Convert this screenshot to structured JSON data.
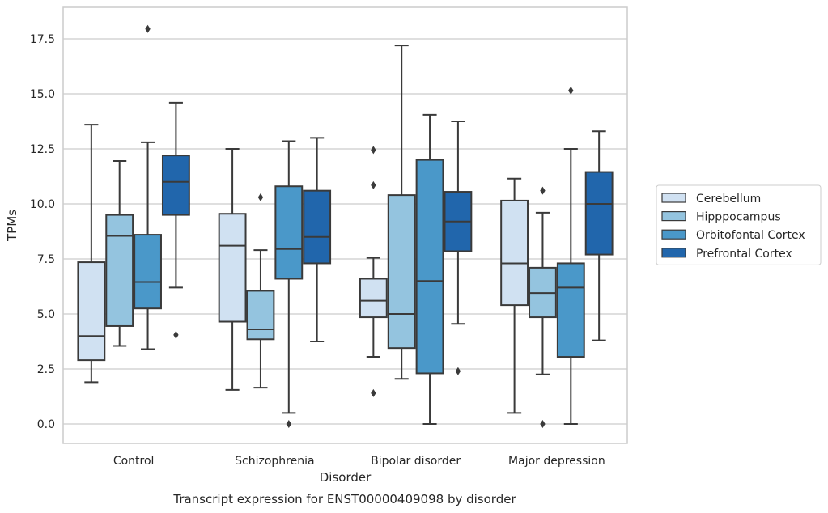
{
  "chart_data": {
    "type": "boxplot",
    "caption": "Transcript expression for ENST00000409098 by disorder",
    "xlabel": "Disorder",
    "ylabel": "TPMs",
    "ylim": [
      -0.85,
      18.8
    ],
    "yticks": [
      "0.0",
      "2.5",
      "5.0",
      "7.5",
      "10.0",
      "12.5",
      "15.0",
      "17.5"
    ],
    "categories": [
      "Control",
      "Schizophrenia",
      "Bipolar disorder",
      "Major depression"
    ],
    "grid": "horizontal",
    "legend_position": "right",
    "series": [
      {
        "name": "Cerebellum",
        "color": "#d0e1f2",
        "boxes": [
          {
            "whislo": 1.9,
            "q1": 2.9,
            "med": 4.0,
            "q3": 7.35,
            "whishi": 13.6,
            "fliers": []
          },
          {
            "whislo": 1.55,
            "q1": 4.65,
            "med": 8.1,
            "q3": 9.55,
            "whishi": 12.5,
            "fliers": []
          },
          {
            "whislo": 3.05,
            "q1": 4.85,
            "med": 5.6,
            "q3": 6.6,
            "whishi": 7.55,
            "fliers": [
              1.4,
              10.85,
              12.45
            ]
          },
          {
            "whislo": 0.5,
            "q1": 5.4,
            "med": 7.3,
            "q3": 10.15,
            "whishi": 11.15,
            "fliers": []
          }
        ]
      },
      {
        "name": "Hipppocampus",
        "color": "#94c4df",
        "boxes": [
          {
            "whislo": 3.55,
            "q1": 4.45,
            "med": 8.55,
            "q3": 9.5,
            "whishi": 11.95,
            "fliers": []
          },
          {
            "whislo": 1.65,
            "q1": 3.85,
            "med": 4.3,
            "q3": 6.05,
            "whishi": 7.9,
            "fliers": [
              10.3
            ]
          },
          {
            "whislo": 2.05,
            "q1": 3.45,
            "med": 5.0,
            "q3": 10.4,
            "whishi": 17.2,
            "fliers": []
          },
          {
            "whislo": 2.25,
            "q1": 4.85,
            "med": 5.95,
            "q3": 7.1,
            "whishi": 9.6,
            "fliers": [
              0.0,
              10.6
            ]
          }
        ]
      },
      {
        "name": "Orbitofontal Cortex",
        "color": "#4a98c9",
        "boxes": [
          {
            "whislo": 3.4,
            "q1": 5.25,
            "med": 6.45,
            "q3": 8.6,
            "whishi": 12.8,
            "fliers": [
              17.95
            ]
          },
          {
            "whislo": 0.5,
            "q1": 6.6,
            "med": 7.95,
            "q3": 10.8,
            "whishi": 12.85,
            "fliers": [
              0.0
            ]
          },
          {
            "whislo": 0.0,
            "q1": 2.3,
            "med": 6.5,
            "q3": 12.0,
            "whishi": 14.05,
            "fliers": []
          },
          {
            "whislo": 0.0,
            "q1": 3.05,
            "med": 6.2,
            "q3": 7.3,
            "whishi": 12.5,
            "fliers": [
              15.15
            ]
          }
        ]
      },
      {
        "name": "Prefrontal Cortex",
        "color": "#2166ac",
        "boxes": [
          {
            "whislo": 6.2,
            "q1": 9.5,
            "med": 11.0,
            "q3": 12.2,
            "whishi": 14.6,
            "fliers": [
              4.05
            ]
          },
          {
            "whislo": 3.75,
            "q1": 7.3,
            "med": 8.5,
            "q3": 10.6,
            "whishi": 13.0,
            "fliers": []
          },
          {
            "whislo": 4.55,
            "q1": 7.85,
            "med": 9.2,
            "q3": 10.55,
            "whishi": 13.75,
            "fliers": [
              2.4
            ]
          },
          {
            "whislo": 3.8,
            "q1": 7.7,
            "med": 10.0,
            "q3": 11.45,
            "whishi": 13.3,
            "fliers": []
          }
        ]
      }
    ]
  }
}
